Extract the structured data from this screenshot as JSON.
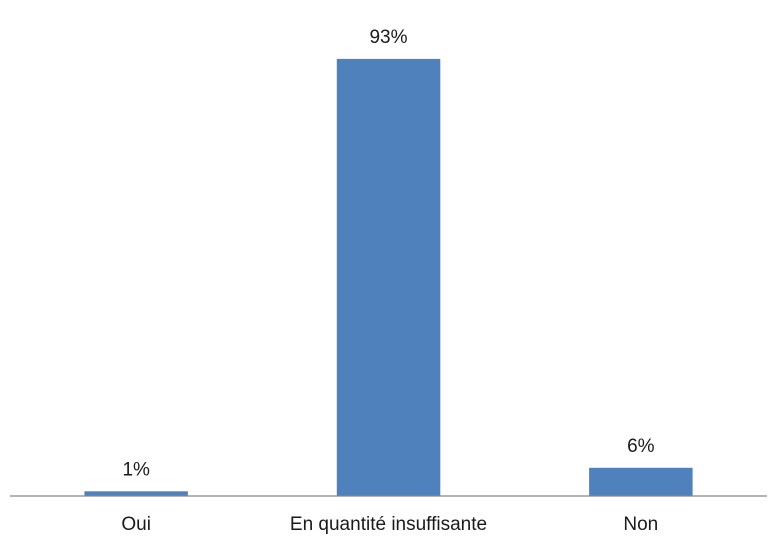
{
  "chart_data": {
    "type": "bar",
    "categories": [
      "Oui",
      "En quantité insuffisante",
      "Non"
    ],
    "values": [
      1,
      93,
      6
    ],
    "value_labels": [
      "1%",
      "93%",
      "6%"
    ],
    "unit": "%",
    "ylim": [
      0,
      100
    ],
    "grid": false,
    "legend": "none",
    "bar_color": "#4f81bd",
    "axis_color": "#868686"
  }
}
